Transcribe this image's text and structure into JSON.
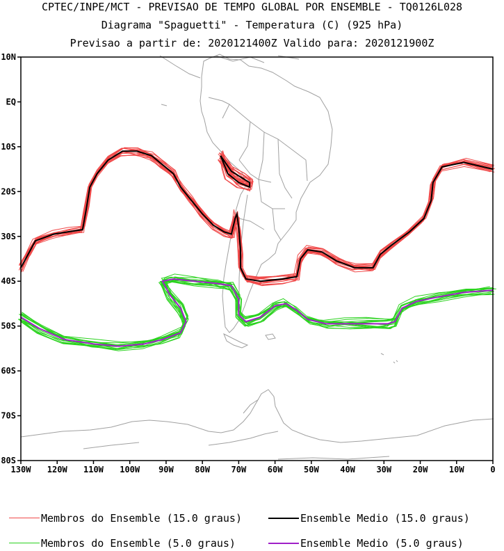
{
  "titles": {
    "line1": "CPTEC/INPE/MCT - PREVISAO DE TEMPO GLOBAL POR ENSEMBLE - TQ0126L028",
    "line2": "Diagrama \"Spaguetti\" - Temperatura (C) (925 hPa)",
    "line3": "Previsao a partir de: 2020121400Z  Valido para: 2020121900Z"
  },
  "axes": {
    "lat_labels": [
      "10N",
      "EQ",
      "10S",
      "20S",
      "30S",
      "40S",
      "50S",
      "60S",
      "70S",
      "80S"
    ],
    "lat_values": [
      10,
      0,
      -10,
      -20,
      -30,
      -40,
      -50,
      -60,
      -70,
      -80
    ],
    "lon_labels": [
      "130W",
      "120W",
      "110W",
      "100W",
      "90W",
      "80W",
      "70W",
      "60W",
      "50W",
      "40W",
      "30W",
      "20W",
      "10W",
      "0"
    ],
    "lon_values": [
      -130,
      -120,
      -110,
      -100,
      -90,
      -80,
      -70,
      -60,
      -50,
      -40,
      -30,
      -20,
      -10,
      0
    ],
    "lat_range": [
      -80,
      10
    ],
    "lon_range": [
      -130,
      0
    ]
  },
  "legend": {
    "members_15": "Membros do Ensemble (15.0 graus)",
    "mean_15": "Ensemble Medio (15.0 graus)",
    "members_5": "Membros do Ensemble (5.0 graus)",
    "mean_5": "Ensemble Medio (5.0 graus)"
  },
  "colors": {
    "members_15": "#f04848",
    "mean_15": "#000000",
    "members_5": "#2ad21e",
    "mean_5": "#a020c8",
    "coast": "#a0a0a0"
  },
  "chart_data": {
    "type": "line",
    "series": [
      {
        "name": "Ensemble Medio (15.0 graus)",
        "segments": [
          [
            [
              -130,
              -37
            ],
            [
              -128,
              -34
            ],
            [
              -126,
              -31
            ],
            [
              -121,
              -29.5
            ],
            [
              -117,
              -29
            ],
            [
              -113,
              -28.5
            ],
            [
              -112,
              -24
            ],
            [
              -111,
              -19
            ],
            [
              -109,
              -16
            ],
            [
              -106,
              -13
            ],
            [
              -102,
              -11
            ],
            [
              -98,
              -11
            ],
            [
              -94,
              -12
            ],
            [
              -91,
              -14
            ],
            [
              -88,
              -16
            ],
            [
              -86,
              -19
            ],
            [
              -83,
              -22
            ],
            [
              -80,
              -25
            ],
            [
              -77,
              -27.5
            ],
            [
              -74,
              -29
            ],
            [
              -72,
              -29.5
            ],
            [
              -71,
              -26
            ],
            [
              -70.5,
              -25
            ],
            [
              -70,
              -28
            ],
            [
              -69.5,
              -33
            ],
            [
              -69.5,
              -37
            ],
            [
              -68,
              -39.5
            ],
            [
              -64,
              -40
            ],
            [
              -58,
              -39.5
            ],
            [
              -54,
              -39
            ],
            [
              -53,
              -35
            ],
            [
              -51,
              -33
            ],
            [
              -47,
              -33.5
            ],
            [
              -43,
              -35.5
            ],
            [
              -38,
              -37
            ],
            [
              -33,
              -37
            ],
            [
              -31,
              -34
            ],
            [
              -28,
              -32
            ],
            [
              -23,
              -29
            ],
            [
              -19,
              -26
            ],
            [
              -17,
              -22
            ],
            [
              -16.5,
              -18
            ],
            [
              -14,
              -14.5
            ],
            [
              -8,
              -13.5
            ],
            [
              0,
              -15
            ]
          ],
          [
            [
              -75,
              -12
            ],
            [
              -72,
              -15.5
            ],
            [
              -69,
              -17
            ],
            [
              -67,
              -18
            ],
            [
              -67,
              -19
            ],
            [
              -70,
              -18
            ],
            [
              -73,
              -16
            ],
            [
              -74,
              -14
            ],
            [
              -75,
              -12
            ]
          ]
        ]
      },
      {
        "name": "Ensemble Medio (5.0 graus)",
        "segments": [
          [
            [
              -130,
              -48
            ],
            [
              -125,
              -50.5
            ],
            [
              -118,
              -53
            ],
            [
              -110,
              -54
            ],
            [
              -103,
              -54.5
            ],
            [
              -96,
              -54
            ],
            [
              -91,
              -53
            ],
            [
              -86,
              -51.5
            ],
            [
              -84.5,
              -49
            ],
            [
              -86,
              -46
            ],
            [
              -89,
              -43
            ],
            [
              -91,
              -40
            ],
            [
              -88,
              -39.5
            ],
            [
              -82,
              -40
            ],
            [
              -76,
              -40.5
            ],
            [
              -72,
              -41
            ],
            [
              -70,
              -44
            ],
            [
              -70,
              -47.5
            ],
            [
              -68,
              -49
            ],
            [
              -64,
              -48
            ],
            [
              -60,
              -45.5
            ],
            [
              -57,
              -45
            ],
            [
              -54,
              -46.5
            ],
            [
              -51,
              -48.5
            ],
            [
              -46,
              -49.5
            ],
            [
              -40,
              -49.5
            ],
            [
              -34,
              -49.5
            ],
            [
              -29,
              -49.5
            ],
            [
              -27,
              -49
            ],
            [
              -25,
              -46
            ],
            [
              -21,
              -44.5
            ],
            [
              -15,
              -43.5
            ],
            [
              -8,
              -42.5
            ],
            [
              0,
              -42
            ]
          ]
        ]
      }
    ],
    "member_bands": [
      {
        "name": "Membros do Ensemble (15.0 graus)",
        "members": 15
      },
      {
        "name": "Membros do Ensemble (5.0 graus)",
        "members": 15
      }
    ]
  }
}
